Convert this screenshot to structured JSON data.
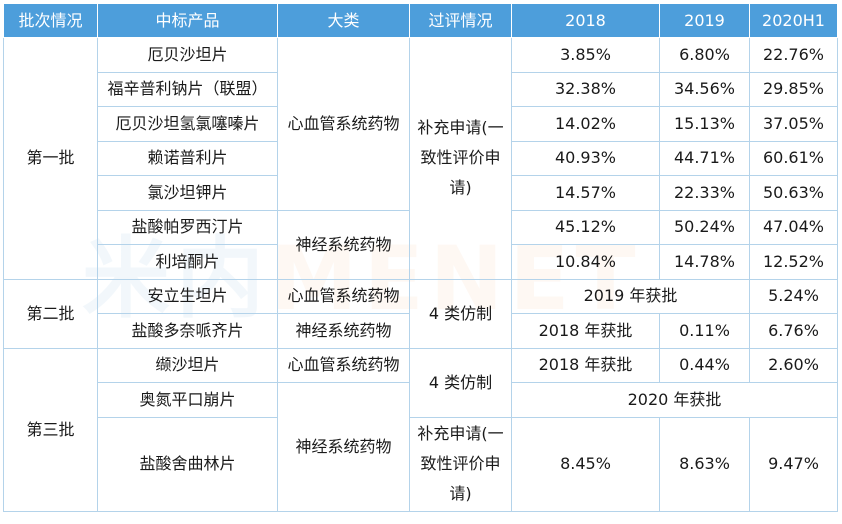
{
  "header": {
    "batch": "批次情况",
    "product": "中标产品",
    "category": "大类",
    "review": "过评情况",
    "y2018": "2018",
    "y2019": "2019",
    "y2020": "2020H1"
  },
  "groups": {
    "batch1": "第一批",
    "batch2": "第二批",
    "batch3": "第三批"
  },
  "categories": {
    "cardio": "心血管系统药物",
    "neuro": "神经系统药物"
  },
  "reviews": {
    "supplement": "补充申请(一致性评价申请)",
    "class4": "4 类仿制"
  },
  "rows": [
    {
      "product": "厄贝沙坦片",
      "v2018": "3.85%",
      "v2019": "6.80%",
      "v2020": "22.76%"
    },
    {
      "product": "福辛普利钠片（联盟）",
      "v2018": "32.38%",
      "v2019": "34.56%",
      "v2020": "29.85%"
    },
    {
      "product": "厄贝沙坦氢氯噻嗪片",
      "v2018": "14.02%",
      "v2019": "15.13%",
      "v2020": "37.05%"
    },
    {
      "product": "赖诺普利片",
      "v2018": "40.93%",
      "v2019": "44.71%",
      "v2020": "60.61%"
    },
    {
      "product": "氯沙坦钾片",
      "v2018": "14.57%",
      "v2019": "22.33%",
      "v2020": "50.63%"
    },
    {
      "product": "盐酸帕罗西汀片",
      "v2018": "45.12%",
      "v2019": "50.24%",
      "v2020": "47.04%"
    },
    {
      "product": "利培酮片",
      "v2018": "10.84%",
      "v2019": "14.78%",
      "v2020": "12.52%"
    },
    {
      "product": "安立生坦片",
      "approved": "2019 年获批",
      "v2020": "5.24%"
    },
    {
      "product": "盐酸多奈哌齐片",
      "approved": "2018 年获批",
      "v2019": "0.11%",
      "v2020": "6.76%"
    },
    {
      "product": "缬沙坦片",
      "approved": "2018 年获批",
      "v2019": "0.44%",
      "v2020": "2.60%"
    },
    {
      "product": "奥氮平口崩片",
      "approved": "2020 年获批"
    },
    {
      "product": "盐酸舍曲林片",
      "v2018": "8.45%",
      "v2019": "8.63%",
      "v2020": "9.47%"
    }
  ],
  "watermark": {
    "part1": "米内",
    "part2": "MENET"
  }
}
